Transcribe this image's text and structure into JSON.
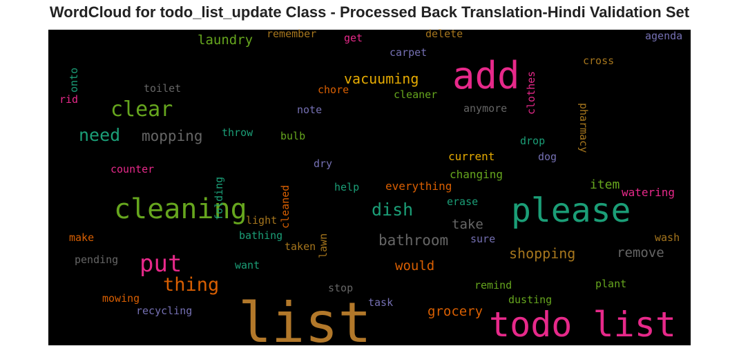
{
  "title": "WordCloud for todo_list_update Class - Processed Back Translation-Hindi Validation Set",
  "chart_data": {
    "type": "wordcloud",
    "background": "#000000",
    "words": [
      {
        "text": "list",
        "color": "#b2782a",
        "weight": 1.0
      },
      {
        "text": "todo list",
        "color": "#e7298a",
        "weight": 0.62
      },
      {
        "text": "please",
        "color": "#1b9e77",
        "weight": 0.58
      },
      {
        "text": "add",
        "color": "#e7298a",
        "weight": 0.6
      },
      {
        "text": "cleaning",
        "color": "#66a61e",
        "weight": 0.55
      },
      {
        "text": "put",
        "color": "#e7298a",
        "weight": 0.43
      },
      {
        "text": "clear",
        "color": "#66a61e",
        "weight": 0.38
      },
      {
        "text": "thing",
        "color": "#d95f02",
        "weight": 0.33
      },
      {
        "text": "need",
        "color": "#1b9e77",
        "weight": 0.3
      },
      {
        "text": "dish",
        "color": "#1b9e77",
        "weight": 0.3
      },
      {
        "text": "bathroom",
        "color": "#666666",
        "weight": 0.26
      },
      {
        "text": "mopping",
        "color": "#666666",
        "weight": 0.26
      },
      {
        "text": "vacuuming",
        "color": "#e6ab02",
        "weight": 0.25
      },
      {
        "text": "shopping",
        "color": "#a6761d",
        "weight": 0.25
      },
      {
        "text": "remove",
        "color": "#666666",
        "weight": 0.24
      },
      {
        "text": "grocery",
        "color": "#d95f02",
        "weight": 0.24
      },
      {
        "text": "would",
        "color": "#d95f02",
        "weight": 0.24
      },
      {
        "text": "laundry",
        "color": "#66a61e",
        "weight": 0.24
      },
      {
        "text": "take",
        "color": "#666666",
        "weight": 0.24
      },
      {
        "text": "item",
        "color": "#66a61e",
        "weight": 0.23
      },
      {
        "text": "everything",
        "color": "#d95f02",
        "weight": 0.2
      },
      {
        "text": "changing",
        "color": "#66a61e",
        "weight": 0.2
      },
      {
        "text": "current",
        "color": "#e6ab02",
        "weight": 0.2
      },
      {
        "text": "watering",
        "color": "#e7298a",
        "weight": 0.2
      },
      {
        "text": "pharmacy",
        "color": "#a6761d",
        "weight": 0.19
      },
      {
        "text": "clothes",
        "color": "#e7298a",
        "weight": 0.19
      },
      {
        "text": "cross",
        "color": "#a6761d",
        "weight": 0.19
      },
      {
        "text": "agenda",
        "color": "#7570b3",
        "weight": 0.19
      },
      {
        "text": "delete",
        "color": "#a6761d",
        "weight": 0.19
      },
      {
        "text": "remember",
        "color": "#a6761d",
        "weight": 0.19
      },
      {
        "text": "get",
        "color": "#e7298a",
        "weight": 0.19
      },
      {
        "text": "carpet",
        "color": "#7570b3",
        "weight": 0.19
      },
      {
        "text": "onto",
        "color": "#1b9e77",
        "weight": 0.19
      },
      {
        "text": "toilet",
        "color": "#666666",
        "weight": 0.19
      },
      {
        "text": "chore",
        "color": "#d95f02",
        "weight": 0.19
      },
      {
        "text": "cleaner",
        "color": "#66a61e",
        "weight": 0.19
      },
      {
        "text": "rid",
        "color": "#e7298a",
        "weight": 0.19
      },
      {
        "text": "note",
        "color": "#7570b3",
        "weight": 0.19
      },
      {
        "text": "anymore",
        "color": "#666666",
        "weight": 0.19
      },
      {
        "text": "throw",
        "color": "#1b9e77",
        "weight": 0.19
      },
      {
        "text": "bulb",
        "color": "#66a61e",
        "weight": 0.19
      },
      {
        "text": "drop",
        "color": "#1b9e77",
        "weight": 0.19
      },
      {
        "text": "dog",
        "color": "#7570b3",
        "weight": 0.19
      },
      {
        "text": "counter",
        "color": "#e7298a",
        "weight": 0.19
      },
      {
        "text": "dry",
        "color": "#7570b3",
        "weight": 0.19
      },
      {
        "text": "folding",
        "color": "#1b9e77",
        "weight": 0.19
      },
      {
        "text": "cleaned",
        "color": "#d95f02",
        "weight": 0.19
      },
      {
        "text": "help",
        "color": "#1b9e77",
        "weight": 0.19
      },
      {
        "text": "erase",
        "color": "#1b9e77",
        "weight": 0.19
      },
      {
        "text": "light",
        "color": "#a6761d",
        "weight": 0.19
      },
      {
        "text": "lawn",
        "color": "#a6761d",
        "weight": 0.19
      },
      {
        "text": "make",
        "color": "#d95f02",
        "weight": 0.19
      },
      {
        "text": "bathing",
        "color": "#1b9e77",
        "weight": 0.19
      },
      {
        "text": "taken",
        "color": "#a6761d",
        "weight": 0.19
      },
      {
        "text": "sure",
        "color": "#7570b3",
        "weight": 0.19
      },
      {
        "text": "wash",
        "color": "#a6761d",
        "weight": 0.19
      },
      {
        "text": "pending",
        "color": "#666666",
        "weight": 0.19
      },
      {
        "text": "want",
        "color": "#1b9e77",
        "weight": 0.19
      },
      {
        "text": "stop",
        "color": "#666666",
        "weight": 0.19
      },
      {
        "text": "remind",
        "color": "#66a61e",
        "weight": 0.19
      },
      {
        "text": "plant",
        "color": "#66a61e",
        "weight": 0.19
      },
      {
        "text": "mowing",
        "color": "#d95f02",
        "weight": 0.19
      },
      {
        "text": "task",
        "color": "#7570b3",
        "weight": 0.19
      },
      {
        "text": "dusting",
        "color": "#66a61e",
        "weight": 0.19
      },
      {
        "text": "recycling",
        "color": "#7570b3",
        "weight": 0.19
      }
    ]
  }
}
